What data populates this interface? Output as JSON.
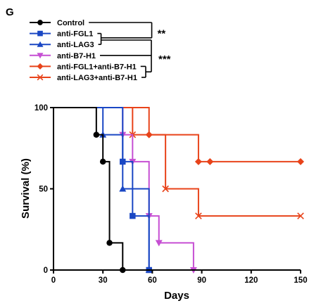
{
  "chart_data": {
    "type": "line",
    "panel_label": "G",
    "xlabel": "Days",
    "ylabel": "Survival (%)",
    "xlim": [
      0,
      150
    ],
    "ylim": [
      0,
      100
    ],
    "xticks": [
      "0",
      "30",
      "60",
      "90",
      "120",
      "150"
    ],
    "yticks": [
      "0",
      "50",
      "100"
    ],
    "grid": false,
    "legend_position": "top-left",
    "significance": [
      {
        "label": "**",
        "groups": [
          "Control",
          "anti-FGL1",
          "anti-LAG3"
        ]
      },
      {
        "label": "***",
        "groups": [
          "anti-FGL1",
          "anti-LAG3",
          "anti-B7-H1",
          "anti-FGL1+anti-B7-H1",
          "anti-LAG3+anti-B7-H1"
        ]
      }
    ],
    "series": [
      {
        "name": "Control",
        "color": "#000000",
        "marker": "circle",
        "steps": [
          [
            0,
            100
          ],
          [
            26,
            83.3
          ],
          [
            30,
            66.7
          ],
          [
            34,
            16.7
          ],
          [
            42,
            0
          ]
        ],
        "markers": [
          [
            26,
            83.3
          ],
          [
            30,
            66.7
          ],
          [
            34,
            16.7
          ],
          [
            42,
            0
          ]
        ]
      },
      {
        "name": "anti-FGL1",
        "color": "#1a47c4",
        "marker": "square",
        "steps": [
          [
            0,
            100
          ],
          [
            42,
            66.7
          ],
          [
            48,
            33.3
          ],
          [
            58,
            0
          ]
        ],
        "markers": [
          [
            42,
            66.7
          ],
          [
            48,
            33.3
          ],
          [
            58,
            0
          ]
        ]
      },
      {
        "name": "anti-LAG3",
        "color": "#1a47c4",
        "marker": "triangle-up",
        "steps": [
          [
            0,
            100
          ],
          [
            30,
            83.3
          ],
          [
            42,
            50
          ],
          [
            58,
            0
          ]
        ],
        "markers": [
          [
            30,
            83.3
          ],
          [
            42,
            50
          ],
          [
            58,
            0
          ]
        ]
      },
      {
        "name": "anti-B7-H1",
        "color": "#c64fd3",
        "marker": "triangle-down",
        "steps": [
          [
            0,
            100
          ],
          [
            42,
            83.3
          ],
          [
            48,
            66.7
          ],
          [
            58,
            33.3
          ],
          [
            64,
            16.7
          ],
          [
            85,
            0
          ]
        ],
        "markers": [
          [
            42,
            83.3
          ],
          [
            48,
            66.7
          ],
          [
            58,
            33.3
          ],
          [
            64,
            16.7
          ],
          [
            85,
            0
          ]
        ]
      },
      {
        "name": "anti-FGL1+anti-B7-H1",
        "color": "#e8431a",
        "marker": "diamond",
        "steps": [
          [
            0,
            100
          ],
          [
            58,
            83.3
          ],
          [
            88,
            66.7
          ],
          [
            150,
            66.7
          ]
        ],
        "markers": [
          [
            58,
            83.3
          ],
          [
            88,
            66.7
          ],
          [
            95,
            66.7
          ],
          [
            150,
            66.7
          ]
        ]
      },
      {
        "name": "anti-LAG3+anti-B7-H1",
        "color": "#e8431a",
        "marker": "x",
        "steps": [
          [
            0,
            100
          ],
          [
            48,
            83.3
          ],
          [
            68,
            50
          ],
          [
            88,
            33.3
          ],
          [
            150,
            33.3
          ]
        ],
        "markers": [
          [
            48,
            83.3
          ],
          [
            68,
            50
          ],
          [
            88,
            33.3
          ],
          [
            150,
            33.3
          ]
        ]
      }
    ]
  }
}
